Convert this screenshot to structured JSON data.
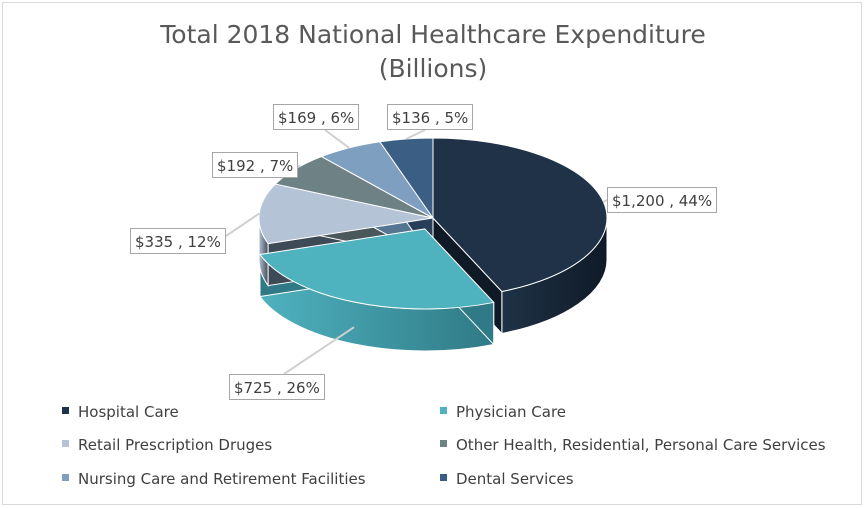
{
  "chart_data": {
    "type": "pie",
    "title": [
      "Total 2018 National Healthcare Expenditure",
      "(Billions)"
    ],
    "slices": [
      {
        "name": "Hospital Care",
        "value": 1200,
        "label": "$1,200 , 44%",
        "color": "#1f3247",
        "side": "#0f1a26"
      },
      {
        "name": "Physician Care",
        "value": 725,
        "label": "$725 , 26%",
        "color": "#4fb2bf",
        "side": "#2f7a86"
      },
      {
        "name": "Retail Prescription Druges",
        "value": 335,
        "label": "$335 , 12%",
        "color": "#b5c3d6",
        "side": "#3f4a57"
      },
      {
        "name": "Other Health, Residential, Personal Care Services",
        "value": 192,
        "label": "$192 , 7%",
        "color": "#6e8185",
        "side": "#4a585b"
      },
      {
        "name": "Nursing Care and Retirement Facilities",
        "value": 169,
        "label": "$169 , 6%",
        "color": "#7f9fc0",
        "side": "#557591"
      },
      {
        "name": "Dental Services",
        "value": 136,
        "label": "$136 , 5%",
        "color": "#3b5f84",
        "side": "#273f59"
      }
    ],
    "legend_position": "bottom"
  }
}
